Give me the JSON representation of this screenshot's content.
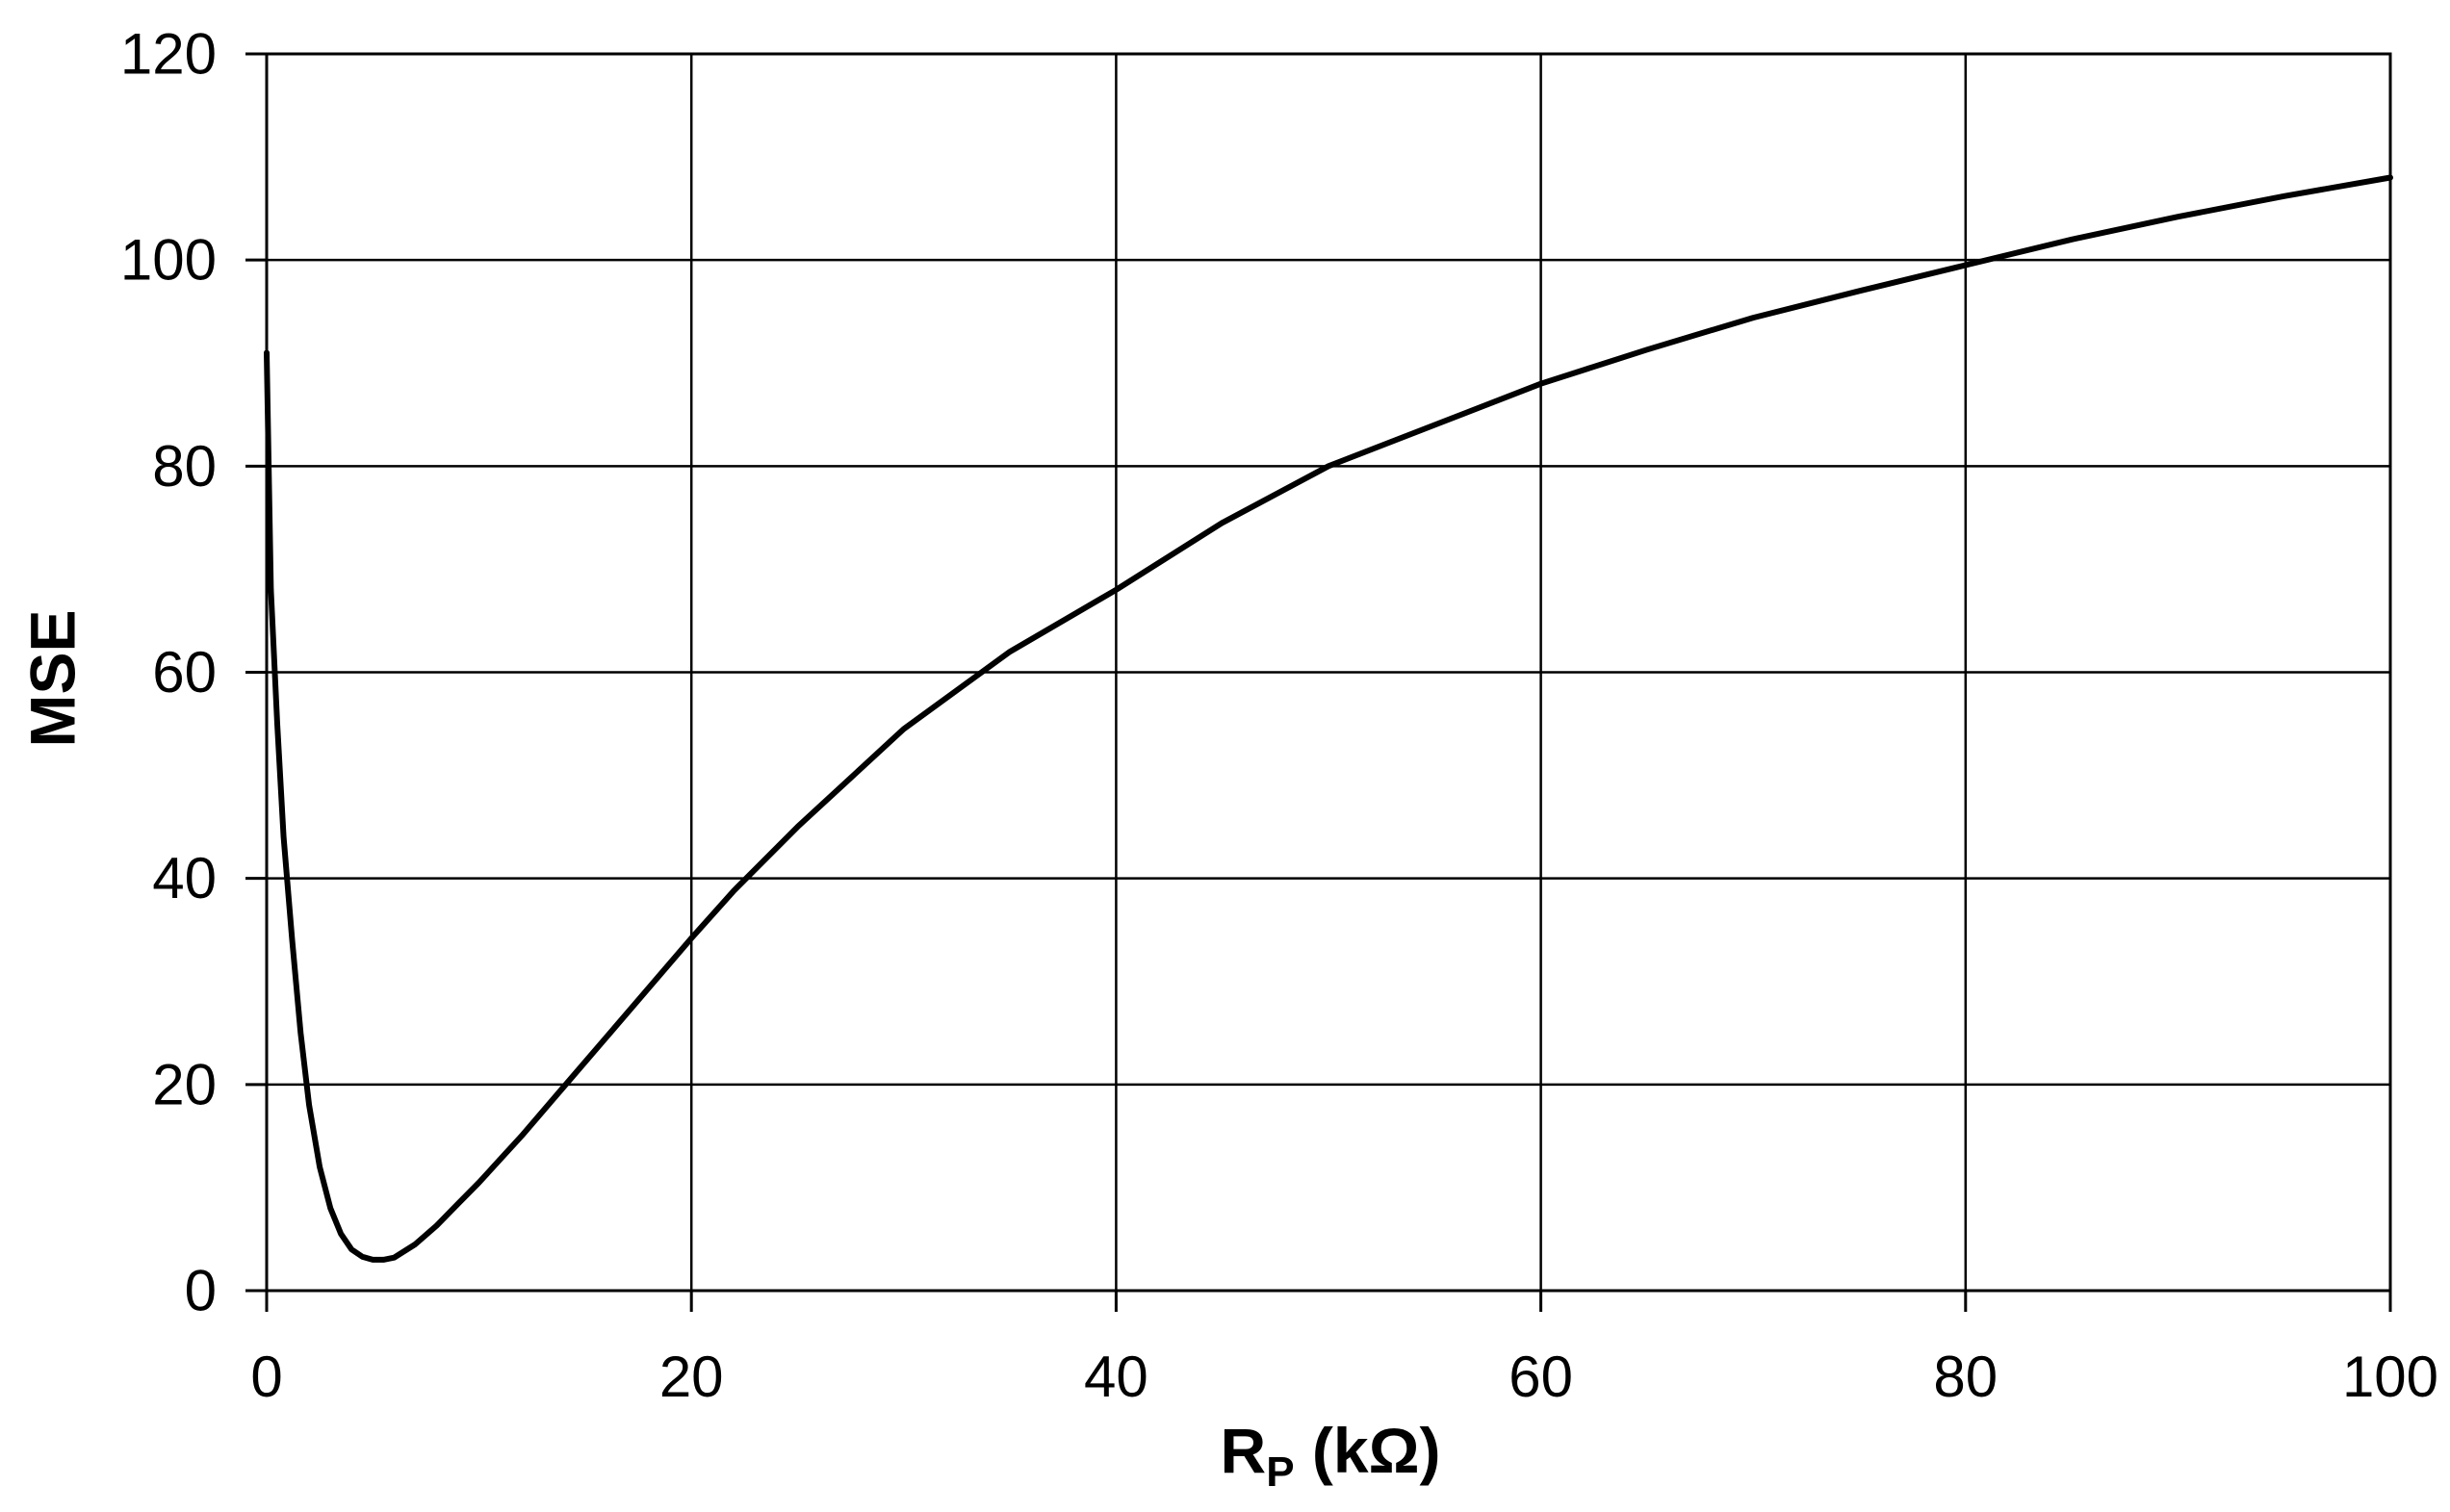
{
  "chart_data": {
    "type": "line",
    "title": "",
    "xlabel_main": "R",
    "xlabel_sub": "P",
    "xlabel_unit": " (kΩ)",
    "ylabel": "MSE",
    "xlim": [
      0,
      100
    ],
    "ylim": [
      0,
      120
    ],
    "xticks": [
      0,
      20,
      40,
      60,
      80,
      100
    ],
    "yticks": [
      0,
      20,
      40,
      60,
      80,
      100,
      120
    ],
    "grid": true,
    "legend": "none",
    "colors": {
      "line": "#000000",
      "grid": "#000000",
      "background": "#ffffff"
    },
    "series": [
      {
        "values_x": [
          0,
          0.2,
          0.5,
          0.8,
          1.2,
          1.6,
          2,
          2.5,
          3,
          3.5,
          4,
          4.5,
          5,
          5.5,
          6,
          7,
          8,
          9,
          10,
          12,
          14,
          16,
          18,
          20,
          22,
          25,
          30,
          35,
          40,
          45,
          50,
          55,
          60,
          65,
          70,
          75,
          80,
          85,
          90,
          95,
          100
        ],
        "values_y": [
          91,
          68,
          55,
          44,
          34,
          25,
          18,
          12,
          8,
          5.5,
          4,
          3.3,
          3,
          3,
          3.2,
          4.5,
          6.3,
          8.4,
          10.5,
          15,
          19.8,
          24.6,
          29.4,
          34.2,
          38.8,
          45,
          54.5,
          62,
          68,
          74.5,
          80,
          84,
          88,
          91.3,
          94.4,
          97,
          99.5,
          102,
          104.2,
          106.2,
          108
        ]
      }
    ]
  }
}
